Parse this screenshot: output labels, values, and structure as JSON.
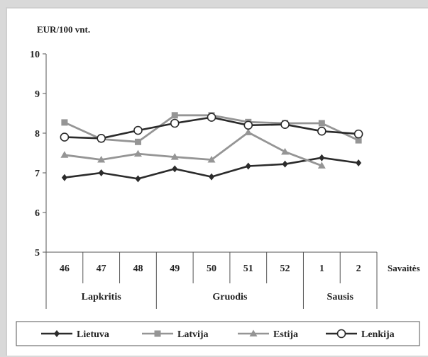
{
  "chart_data": {
    "type": "line",
    "ylabel": "EUR/100 vnt.",
    "xlabel": "Savaitės",
    "ylim": [
      5,
      10
    ],
    "yticks": [
      "5",
      "6",
      "7",
      "8",
      "9",
      "10"
    ],
    "categories": [
      "46",
      "47",
      "48",
      "49",
      "50",
      "51",
      "52",
      "1",
      "2"
    ],
    "months": [
      {
        "label": "Lapkritis",
        "span": 3
      },
      {
        "label": "Gruodis",
        "span": 4
      },
      {
        "label": "Sausis",
        "span": 2
      }
    ],
    "grid": false,
    "legend_position": "bottom",
    "series": [
      {
        "name": "Lietuva",
        "values": [
          6.88,
          7.0,
          6.85,
          7.1,
          6.9,
          7.17,
          7.22,
          7.38,
          7.25
        ],
        "color": "#2b2b2b",
        "marker": "diamond"
      },
      {
        "name": "Latvija",
        "values": [
          8.27,
          7.85,
          7.78,
          8.45,
          8.45,
          8.28,
          8.25,
          8.25,
          7.82
        ],
        "color": "#959595",
        "marker": "square"
      },
      {
        "name": "Estija",
        "values": [
          7.45,
          7.33,
          7.48,
          7.4,
          7.33,
          8.02,
          7.53,
          7.18,
          null
        ],
        "color": "#959595",
        "marker": "triangle"
      },
      {
        "name": "Lenkija",
        "values": [
          7.9,
          7.87,
          8.07,
          8.25,
          8.4,
          8.2,
          8.22,
          8.05,
          7.98
        ],
        "color": "#2b2b2b",
        "marker": "circle"
      }
    ]
  }
}
